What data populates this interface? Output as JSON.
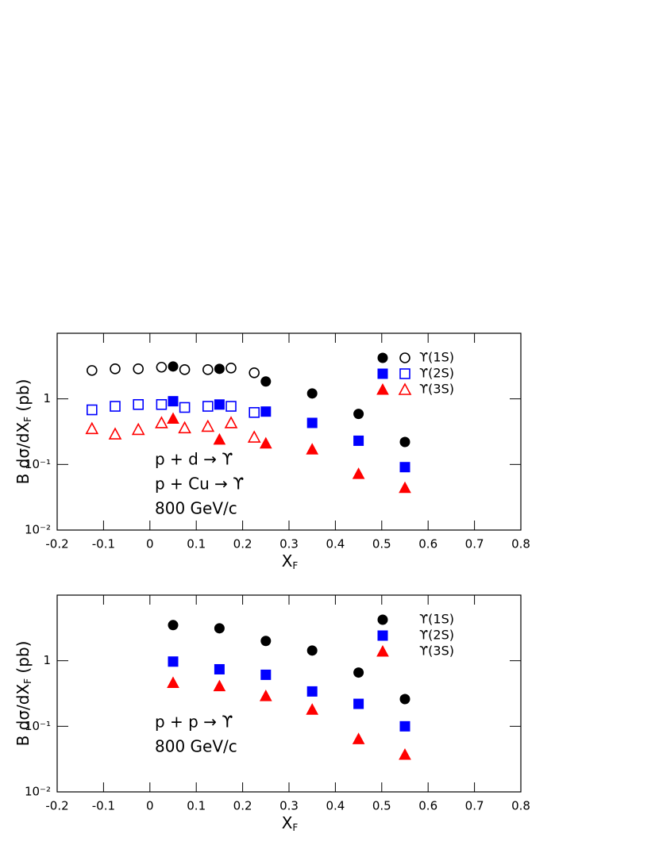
{
  "chart_data": [
    {
      "type": "scatter",
      "xlim": [
        -0.2,
        0.8
      ],
      "xticks": [
        -0.2,
        -0.1,
        0,
        0.1,
        0.2,
        0.3,
        0.4,
        0.5,
        0.6,
        0.7,
        0.8
      ],
      "ylim": [
        0.01,
        10
      ],
      "yscale": "log",
      "yticks": [
        {
          "value": 0.01,
          "label": "10⁻²"
        },
        {
          "value": 0.1,
          "label": "10⁻¹"
        },
        1
      ],
      "xlabel": [
        "X",
        "F"
      ],
      "ylabel": [
        "B dσ/dX",
        "F",
        " (pb)"
      ],
      "annotations": [
        "p + d → ϒ",
        "p + Cu → ϒ",
        "800 GeV/c"
      ],
      "series": [
        {
          "name": "ϒ(1S)",
          "color": "#000000",
          "marker": "circle",
          "filled": true,
          "x": [
            0.05,
            0.15,
            0.25,
            0.35,
            0.45,
            0.55
          ],
          "values": [
            3.12,
            2.87,
            1.84,
            1.21,
            0.59,
            0.22
          ]
        },
        {
          "color": "#000000",
          "marker": "circle",
          "filled": false,
          "x": [
            -0.125,
            -0.075,
            -0.025,
            0.025,
            0.075,
            0.125,
            0.175,
            0.225
          ],
          "values": [
            2.71,
            2.87,
            2.87,
            3.04,
            2.79,
            2.79,
            2.95,
            2.5
          ]
        },
        {
          "name": "ϒ(2S)",
          "color": "#0000ff",
          "marker": "square",
          "filled": true,
          "x": [
            0.05,
            0.15,
            0.25,
            0.35,
            0.45,
            0.55
          ],
          "values": [
            0.92,
            0.82,
            0.64,
            0.43,
            0.23,
            0.091
          ]
        },
        {
          "color": "#0000ff",
          "marker": "square",
          "filled": false,
          "x": [
            -0.125,
            -0.075,
            -0.025,
            0.025,
            0.075,
            0.125,
            0.175,
            0.225
          ],
          "values": [
            0.68,
            0.77,
            0.82,
            0.82,
            0.74,
            0.77,
            0.77,
            0.62
          ]
        },
        {
          "name": "ϒ(3S)",
          "color": "#ff0000",
          "marker": "triangle",
          "filled": true,
          "x": [
            0.05,
            0.15,
            0.25,
            0.35,
            0.45,
            0.55
          ],
          "values": [
            0.5,
            0.24,
            0.21,
            0.17,
            0.072,
            0.044
          ]
        },
        {
          "color": "#ff0000",
          "marker": "triangle",
          "filled": false,
          "x": [
            -0.125,
            -0.075,
            -0.025,
            0.025,
            0.075,
            0.125,
            0.175,
            0.225
          ],
          "values": [
            0.35,
            0.29,
            0.34,
            0.43,
            0.36,
            0.38,
            0.43,
            0.26
          ]
        }
      ]
    },
    {
      "type": "scatter",
      "xlim": [
        -0.2,
        0.8
      ],
      "xticks": [
        -0.2,
        -0.1,
        0,
        0.1,
        0.2,
        0.3,
        0.4,
        0.5,
        0.6,
        0.7,
        0.8
      ],
      "ylim": [
        0.01,
        10
      ],
      "yscale": "log",
      "yticks": [
        {
          "value": 0.01,
          "label": "10⁻²"
        },
        {
          "value": 0.1,
          "label": "10⁻¹"
        },
        1
      ],
      "xlabel": [
        "X",
        "F"
      ],
      "ylabel": [
        "B dσ/dX",
        "F",
        " (pb)"
      ],
      "annotations": [
        "p + p → ϒ",
        "800 GeV/c"
      ],
      "series": [
        {
          "name": "ϒ(1S)",
          "color": "#000000",
          "marker": "circle",
          "filled": true,
          "x": [
            0.05,
            0.15,
            0.25,
            0.35,
            0.45,
            0.55
          ],
          "values": [
            3.49,
            3.12,
            2.0,
            1.43,
            0.66,
            0.26
          ]
        },
        {
          "name": "ϒ(2S)",
          "color": "#0000ff",
          "marker": "square",
          "filled": true,
          "x": [
            0.05,
            0.15,
            0.25,
            0.35,
            0.45,
            0.55
          ],
          "values": [
            0.97,
            0.74,
            0.61,
            0.34,
            0.22,
            0.1
          ]
        },
        {
          "name": "ϒ(3S)",
          "color": "#ff0000",
          "marker": "triangle",
          "filled": true,
          "x": [
            0.05,
            0.15,
            0.25,
            0.35,
            0.45,
            0.55
          ],
          "values": [
            0.46,
            0.41,
            0.29,
            0.18,
            0.064,
            0.037
          ]
        }
      ]
    }
  ]
}
